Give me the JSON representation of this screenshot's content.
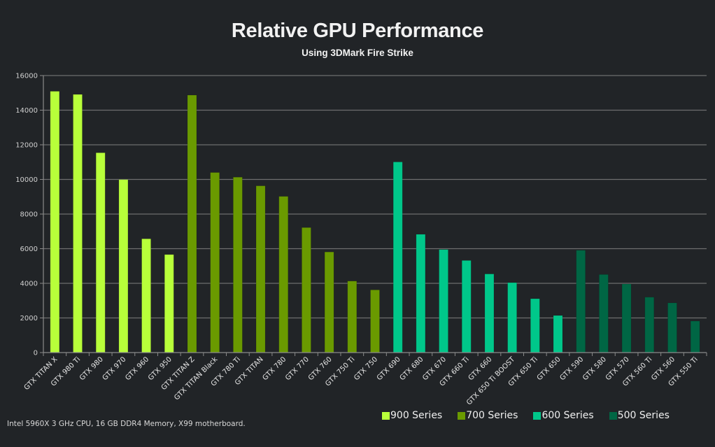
{
  "chart_data": {
    "type": "bar",
    "title": "Relative GPU Performance",
    "subtitle": "Using 3DMark Fire Strike",
    "xlabel": "",
    "ylabel": "",
    "ylim": [
      0,
      16000
    ],
    "yticks": [
      0,
      2000,
      4000,
      6000,
      8000,
      10000,
      12000,
      14000,
      16000
    ],
    "grid": true,
    "legend_position": "bottom-right",
    "categories": [
      "GTX TITAN X",
      "GTX 980 Ti",
      "GTX 980",
      "GTX 970",
      "GTX 960",
      "GTX 950",
      "GTX TITAN Z",
      "GTX TITAN Black",
      "GTX 780 Ti",
      "GTX TITAN",
      "GTX 780",
      "GTX 770",
      "GTX 760",
      "GTX 750 Ti",
      "GTX 750",
      "GTX 690",
      "GTX 680",
      "GTX 670",
      "GTX 660 Ti",
      "GTX 660",
      "GTX 650 Ti BOOST",
      "GTX 650 Ti",
      "GTX 650",
      "GTX 590",
      "GTX 580",
      "GTX 570",
      "GTX 560 Ti",
      "GTX 560",
      "GTX 550 Ti"
    ],
    "values": [
      15090,
      14910,
      11540,
      9990,
      6570,
      5660,
      14870,
      10400,
      10130,
      9630,
      9020,
      7220,
      5810,
      4130,
      3620,
      11010,
      6830,
      5950,
      5320,
      4540,
      4040,
      3110,
      2140,
      5910,
      4510,
      3960,
      3200,
      2870,
      1820
    ],
    "series_of_category": [
      "900 Series",
      "900 Series",
      "900 Series",
      "900 Series",
      "900 Series",
      "900 Series",
      "700 Series",
      "700 Series",
      "700 Series",
      "700 Series",
      "700 Series",
      "700 Series",
      "700 Series",
      "700 Series",
      "700 Series",
      "600 Series",
      "600 Series",
      "600 Series",
      "600 Series",
      "600 Series",
      "600 Series",
      "600 Series",
      "600 Series",
      "500 Series",
      "500 Series",
      "500 Series",
      "500 Series",
      "500 Series",
      "500 Series"
    ],
    "series": [
      {
        "name": "900 Series",
        "color": "#b8ff3a"
      },
      {
        "name": "700 Series",
        "color": "#6a9a00"
      },
      {
        "name": "600 Series",
        "color": "#00c78a"
      },
      {
        "name": "500 Series",
        "color": "#006644"
      }
    ],
    "footnote": "Intel 5960X  3 GHz CPU, 16 GB DDR4 Memory, X99 motherboard."
  },
  "colors": {
    "background": "#212427",
    "gridline": "#6e6e6e",
    "axis": "#8a8a8a"
  }
}
